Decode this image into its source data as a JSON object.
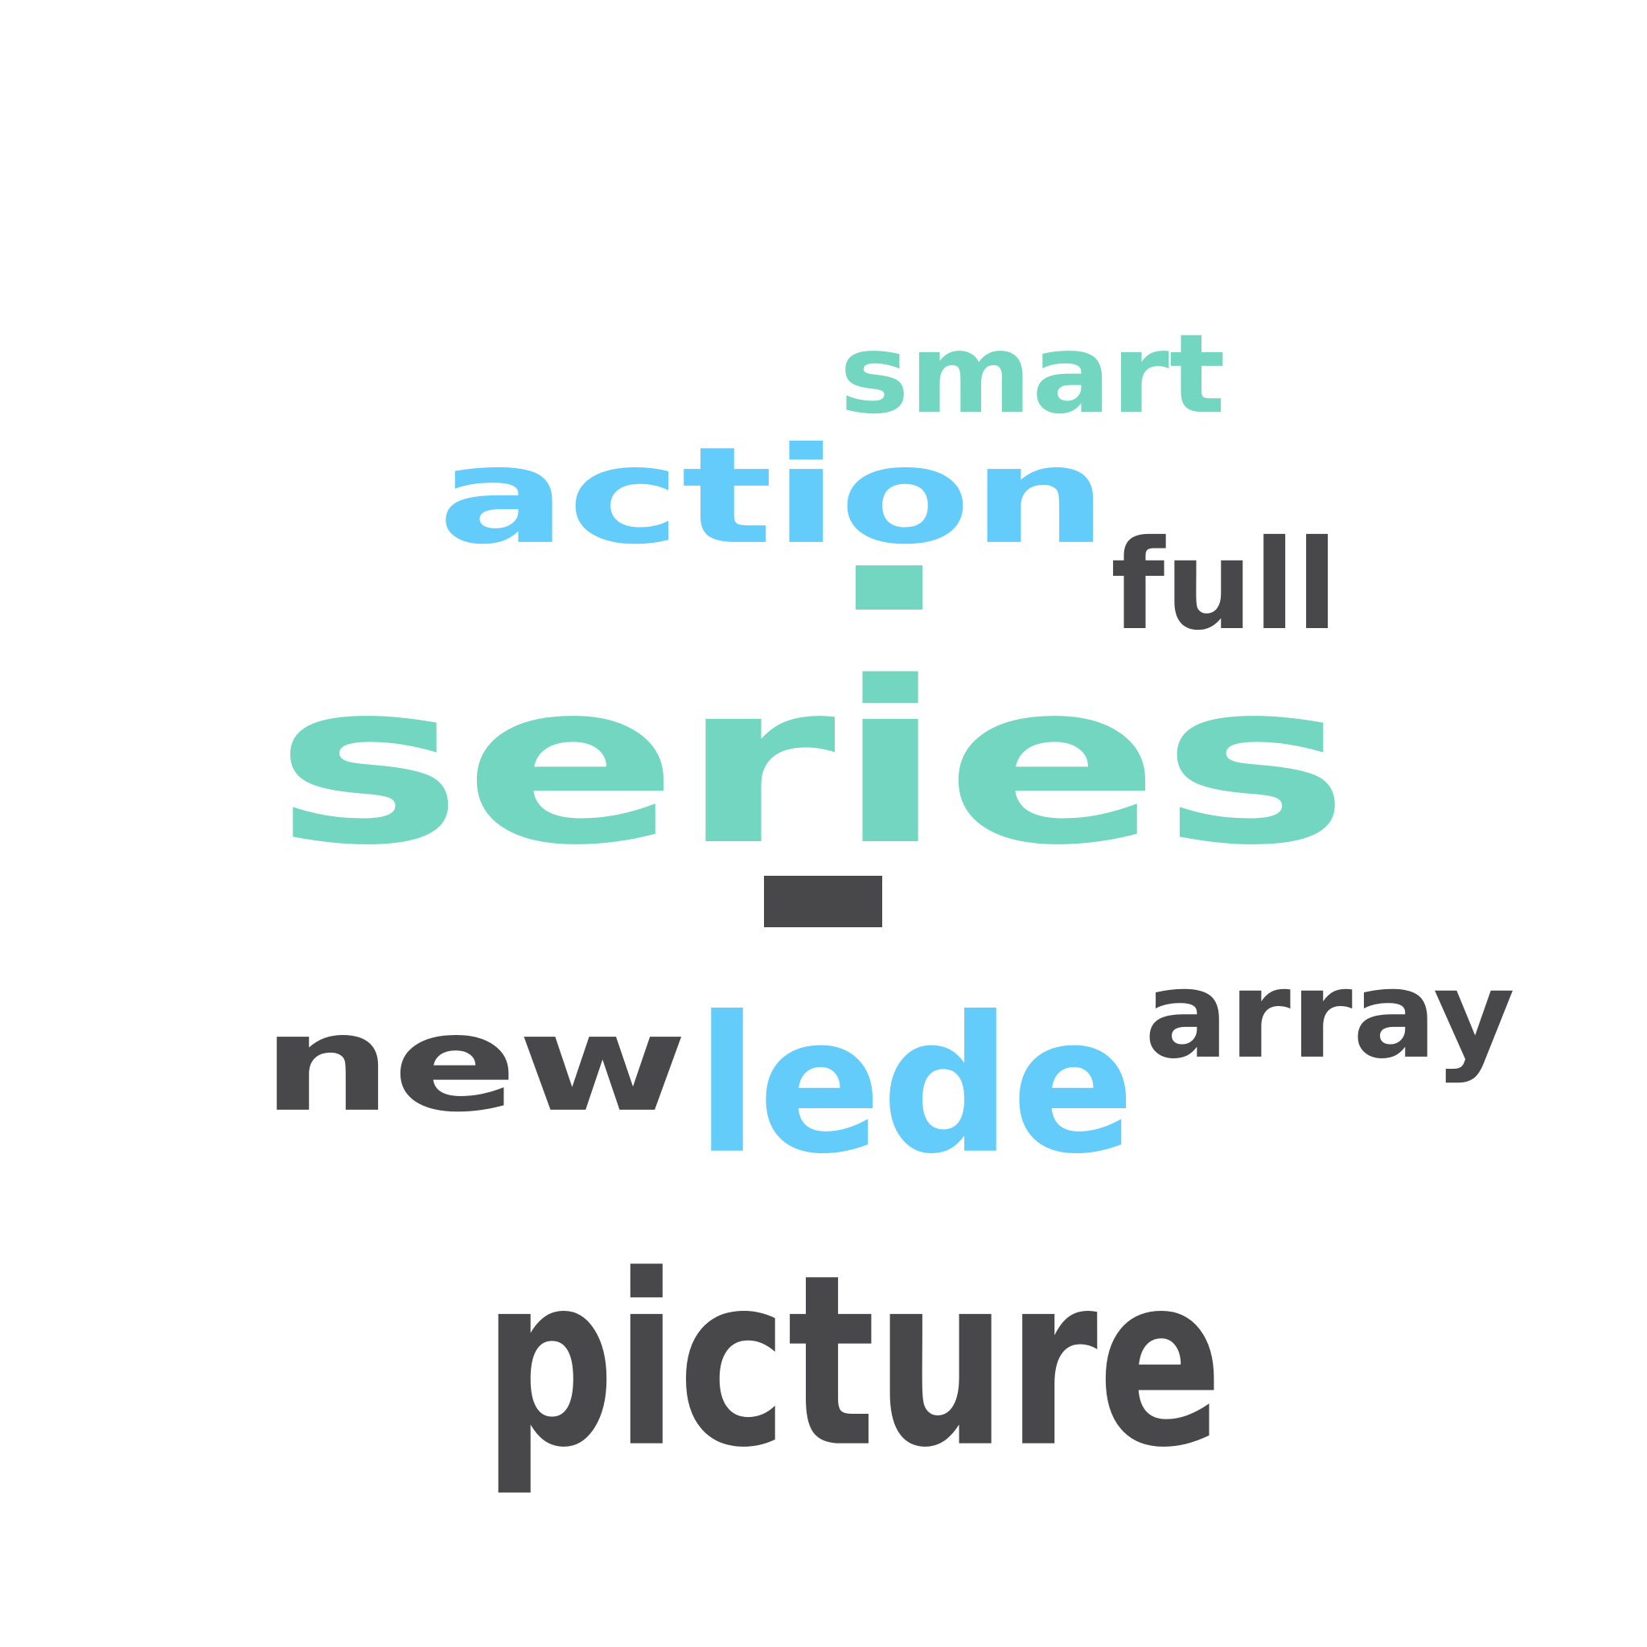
{
  "colors": {
    "teal": "#72d6c0",
    "blue": "#64ccfb",
    "dark": "#48484a",
    "background": "#ffffff"
  },
  "words": [
    {
      "text": "series",
      "color": "teal"
    },
    {
      "text": "action",
      "color": "blue"
    },
    {
      "text": "smart",
      "color": "teal"
    },
    {
      "text": "full",
      "color": "dark"
    },
    {
      "text": "new",
      "color": "dark"
    },
    {
      "text": "lede",
      "color": "blue"
    },
    {
      "text": "array",
      "color": "dark"
    },
    {
      "text": "picture",
      "color": "dark"
    }
  ],
  "marks": [
    {
      "color": "teal"
    },
    {
      "color": "dark"
    }
  ]
}
